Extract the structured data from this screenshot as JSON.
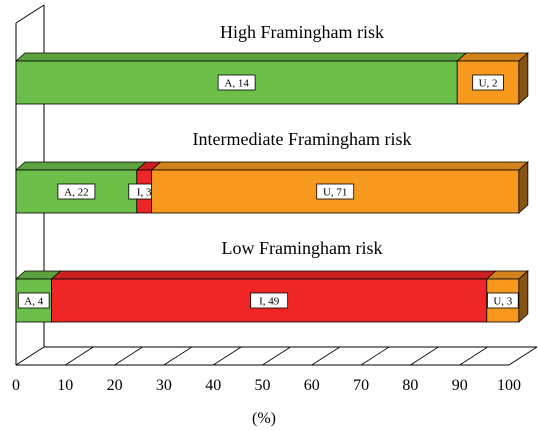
{
  "chart_data": {
    "type": "bar",
    "orientation": "horizontal",
    "stacked": true,
    "three_d": true,
    "title": "",
    "xlabel": "(%)",
    "ylabel": "",
    "xlim": [
      0,
      100
    ],
    "x_ticks": [
      "0",
      "10",
      "20",
      "30",
      "40",
      "50",
      "60",
      "70",
      "80",
      "90",
      "100"
    ],
    "grid": false,
    "legend": "none",
    "categories": [
      {
        "label": "High Framingham risk",
        "segments": [
          {
            "name": "A",
            "count": 14,
            "label": "A, 14",
            "start": 0,
            "end": 89.5
          },
          {
            "name": "U",
            "count": 2,
            "label": "U, 2",
            "start": 89.5,
            "end": 102
          }
        ]
      },
      {
        "label": "Intermediate Framingham risk",
        "segments": [
          {
            "name": "A",
            "count": 22,
            "label": "A, 22",
            "start": 0,
            "end": 24.5
          },
          {
            "name": "I",
            "count": 3,
            "label": "I, 3",
            "start": 24.5,
            "end": 27.5
          },
          {
            "name": "U",
            "count": 71,
            "label": "U, 71",
            "start": 27.5,
            "end": 102
          }
        ]
      },
      {
        "label": "Low Framingham risk",
        "segments": [
          {
            "name": "A",
            "count": 4,
            "label": "A, 4",
            "start": 0,
            "end": 7.2
          },
          {
            "name": "I",
            "count": 49,
            "label": "I, 49",
            "start": 7.2,
            "end": 95.5
          },
          {
            "name": "U",
            "count": 3,
            "label": "U, 3",
            "start": 95.5,
            "end": 102
          }
        ]
      }
    ],
    "colors": {
      "A": "#6cc04a",
      "I": "#ee2726",
      "U": "#f7991f"
    }
  }
}
